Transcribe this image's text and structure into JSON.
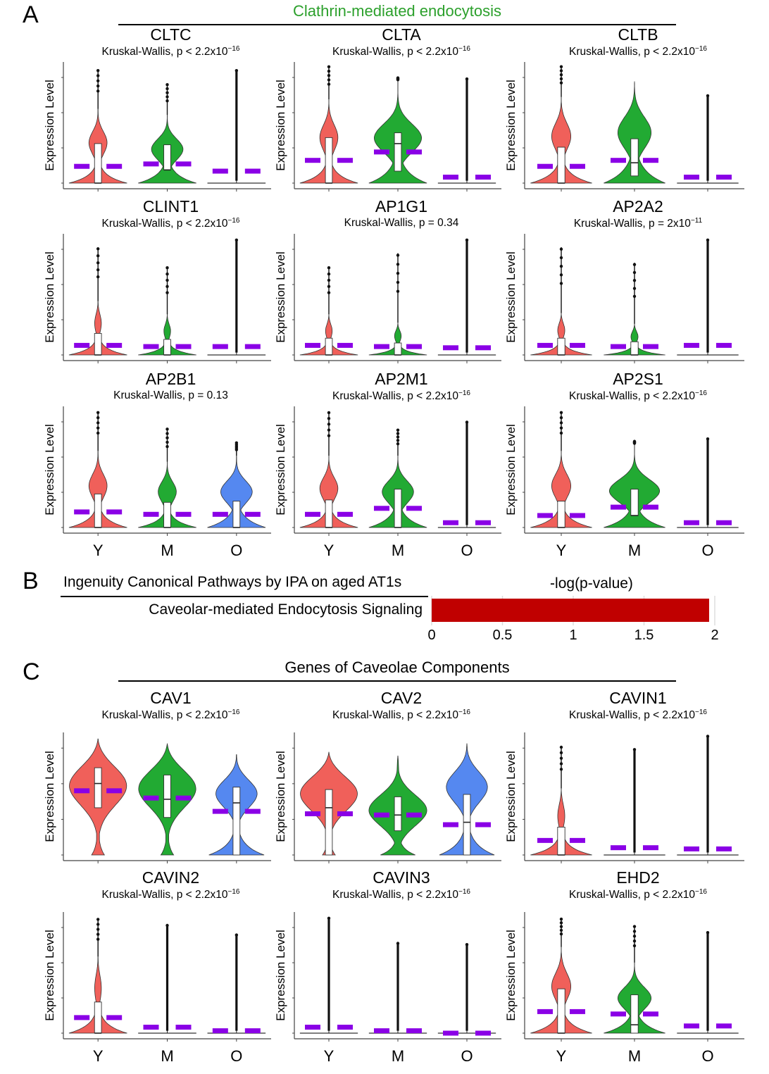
{
  "panels": {
    "A": {
      "letter": "A",
      "title": "Clathrin-mediated endocytosis",
      "title_color": "#2ca02c"
    },
    "B": {
      "letter": "B",
      "title": "Ingenuity Canonical Pathways by IPA on aged AT1s",
      "xlabel": "-log(p-value)",
      "row_label": "Caveolar-mediated Endocytosis Signaling",
      "ticks": [
        "0",
        "0.5",
        "1",
        "1.5",
        "2"
      ]
    },
    "C": {
      "letter": "C",
      "title": "Genes of Caveolae Components"
    }
  },
  "groups": [
    "Y",
    "M",
    "O"
  ],
  "ylabel": "Expression Level",
  "colors": {
    "Y": "#f0605a",
    "M": "#22aa33",
    "O": "#5588f0",
    "mean_bar": "#8a00e6",
    "ipa_bar": "#c00000"
  },
  "chart_data": [
    {
      "type": "bar",
      "title": "Ingenuity Canonical Pathways by IPA on aged AT1s",
      "xlabel": "-log(p-value)",
      "categories": [
        "Caveolar-mediated Endocytosis Signaling"
      ],
      "values": [
        1.96
      ],
      "xlim": [
        0,
        2
      ],
      "xticks": [
        0,
        0.5,
        1,
        1.5,
        2
      ],
      "orientation": "horizontal"
    },
    {
      "type": "violin",
      "panel": "A",
      "ylabel": "Expression Level",
      "categories": [
        "Y",
        "M",
        "O"
      ],
      "note": "values are relative positions on each plot's y-axis (0 = bottom, 1 = top); mean shown as purple bars",
      "plots": [
        {
          "gene": "CLTC",
          "stat": "Kruskal-Wallis, p < 2.2x10",
          "exp": "−16",
          "series": [
            {
              "group": "Y",
              "shape": "tall",
              "body_top": 0.62,
              "box": [
                0,
                0.33
              ],
              "median": 0,
              "mean": 0.14,
              "max": 0.95
            },
            {
              "group": "M",
              "shape": "mid",
              "body_top": 0.57,
              "box": [
                0.11,
                0.32
              ],
              "median": 0.11,
              "mean": 0.16,
              "max": 0.83
            },
            {
              "group": "O",
              "shape": "flat",
              "body_top": 0.0,
              "box": [
                0,
                0
              ],
              "median": 0,
              "mean": 0.1,
              "max": 0.94
            }
          ]
        },
        {
          "gene": "CLTA",
          "stat": "Kruskal-Wallis, p < 2.2x10",
          "exp": "−16",
          "series": [
            {
              "group": "Y",
              "shape": "tall",
              "body_top": 0.7,
              "box": [
                0,
                0.38
              ],
              "median": 0,
              "mean": 0.19,
              "max": 0.98
            },
            {
              "group": "M",
              "shape": "bulb",
              "body_top": 0.85,
              "box": [
                0.1,
                0.42
              ],
              "median": 0.33,
              "mean": 0.26,
              "max": 0.88
            },
            {
              "group": "O",
              "shape": "flat",
              "body_top": 0.0,
              "box": [
                0,
                0
              ],
              "median": 0,
              "mean": 0.05,
              "max": 0.87
            }
          ]
        },
        {
          "gene": "CLTB",
          "stat": "Kruskal-Wallis, p < 2.2x10",
          "exp": "−16",
          "series": [
            {
              "group": "Y",
              "shape": "tall",
              "body_top": 0.72,
              "box": [
                0,
                0.3
              ],
              "median": 0,
              "mean": 0.14,
              "max": 0.98
            },
            {
              "group": "M",
              "shape": "mid",
              "body_top": 0.85,
              "box": [
                0.06,
                0.37
              ],
              "median": 0.17,
              "mean": 0.19,
              "max": 0.84
            },
            {
              "group": "O",
              "shape": "flat",
              "body_top": 0.0,
              "box": [
                0,
                0
              ],
              "median": 0,
              "mean": 0.05,
              "max": 0.73
            }
          ]
        },
        {
          "gene": "CLINT1",
          "stat": "Kruskal-Wallis, p < 2.2x10",
          "exp": "−16",
          "series": [
            {
              "group": "Y",
              "shape": "thin",
              "body_top": 0.45,
              "box": [
                0,
                0.18
              ],
              "median": 0,
              "mean": 0.08,
              "max": 0.9
            },
            {
              "group": "M",
              "shape": "thin",
              "body_top": 0.34,
              "box": [
                0,
                0.13
              ],
              "median": 0,
              "mean": 0.07,
              "max": 0.74
            },
            {
              "group": "O",
              "shape": "flat",
              "body_top": 0.0,
              "box": [
                0,
                0
              ],
              "median": 0,
              "mean": 0.07,
              "max": 0.96
            }
          ]
        },
        {
          "gene": "AP1G1",
          "stat": "Kruskal-Wallis, p = 0.34",
          "exp": "",
          "series": [
            {
              "group": "Y",
              "shape": "thin",
              "body_top": 0.34,
              "box": [
                0,
                0.14
              ],
              "median": 0,
              "mean": 0.08,
              "max": 0.74
            },
            {
              "group": "M",
              "shape": "thin",
              "body_top": 0.27,
              "box": [
                0,
                0.1
              ],
              "median": 0,
              "mean": 0.07,
              "max": 0.85
            },
            {
              "group": "O",
              "shape": "flat",
              "body_top": 0.0,
              "box": [
                0,
                0
              ],
              "median": 0,
              "mean": 0.06,
              "max": 0.96
            }
          ]
        },
        {
          "gene": "AP2A2",
          "stat": "Kruskal-Wallis, p = 2x10",
          "exp": "−11",
          "series": [
            {
              "group": "Y",
              "shape": "thin",
              "body_top": 0.35,
              "box": [
                0,
                0.14
              ],
              "median": 0,
              "mean": 0.08,
              "max": 0.9
            },
            {
              "group": "M",
              "shape": "thin",
              "body_top": 0.26,
              "box": [
                0,
                0.11
              ],
              "median": 0,
              "mean": 0.07,
              "max": 0.77
            },
            {
              "group": "O",
              "shape": "flat",
              "body_top": 0.0,
              "box": [
                0,
                0
              ],
              "median": 0,
              "mean": 0.08,
              "max": 0.96
            }
          ]
        },
        {
          "gene": "AP2B1",
          "stat": "Kruskal-Wallis, p = 0.13",
          "exp": "",
          "series": [
            {
              "group": "Y",
              "shape": "tall",
              "body_top": 0.64,
              "box": [
                0,
                0.28
              ],
              "median": 0,
              "mean": 0.13,
              "max": 0.97
            },
            {
              "group": "M",
              "shape": "tall",
              "body_top": 0.55,
              "box": [
                0,
                0.21
              ],
              "median": 0,
              "mean": 0.11,
              "max": 0.83
            },
            {
              "group": "O",
              "shape": "mid",
              "body_top": 0.6,
              "box": [
                0,
                0.22
              ],
              "median": 0,
              "mean": 0.11,
              "max": 0.71
            }
          ]
        },
        {
          "gene": "AP2M1",
          "stat": "Kruskal-Wallis, p < 2.2x10",
          "exp": "−16",
          "series": [
            {
              "group": "Y",
              "shape": "tall",
              "body_top": 0.6,
              "box": [
                0,
                0.23
              ],
              "median": 0,
              "mean": 0.11,
              "max": 0.97
            },
            {
              "group": "M",
              "shape": "mid",
              "body_top": 0.6,
              "box": [
                0,
                0.32
              ],
              "median": 0,
              "mean": 0.16,
              "max": 0.82
            },
            {
              "group": "O",
              "shape": "flat",
              "body_top": 0.0,
              "box": [
                0,
                0
              ],
              "median": 0,
              "mean": 0.04,
              "max": 0.88
            }
          ]
        },
        {
          "gene": "AP2S1",
          "stat": "Kruskal-Wallis, p < 2.2x10",
          "exp": "−16",
          "series": [
            {
              "group": "Y",
              "shape": "tall",
              "body_top": 0.64,
              "box": [
                0,
                0.22
              ],
              "median": 0,
              "mean": 0.1,
              "max": 0.97
            },
            {
              "group": "M",
              "shape": "bulb",
              "body_top": 0.69,
              "box": [
                0.1,
                0.32
              ],
              "median": 0.1,
              "mean": 0.17,
              "max": 0.72
            },
            {
              "group": "O",
              "shape": "flat",
              "body_top": 0.0,
              "box": [
                0,
                0
              ],
              "median": 0,
              "mean": 0.04,
              "max": 0.74
            }
          ]
        }
      ]
    },
    {
      "type": "violin",
      "panel": "C",
      "ylabel": "Expression Level",
      "categories": [
        "Y",
        "M",
        "O"
      ],
      "note": "values are relative positions on each plot's y-axis (0 = bottom, 1 = top); mean shown as purple bars",
      "plots": [
        {
          "gene": "CAV1",
          "stat": "Kruskal-Wallis, p < 2.2x10",
          "exp": "−16",
          "series": [
            {
              "group": "Y",
              "shape": "full",
              "body_top": 0.96,
              "box": [
                0.39,
                0.72
              ],
              "median": 0.59,
              "mean": 0.53,
              "max": 0.96
            },
            {
              "group": "M",
              "shape": "full",
              "body_top": 0.92,
              "box": [
                0.31,
                0.66
              ],
              "median": 0.46,
              "mean": 0.47,
              "max": 0.92
            },
            {
              "group": "O",
              "shape": "top",
              "body_top": 0.83,
              "box": [
                0,
                0.56
              ],
              "median": 0.43,
              "mean": 0.36,
              "max": 0.83
            }
          ]
        },
        {
          "gene": "CAV2",
          "stat": "Kruskal-Wallis, p < 2.2x10",
          "exp": "−16",
          "series": [
            {
              "group": "Y",
              "shape": "full",
              "body_top": 0.85,
              "box": [
                0,
                0.54
              ],
              "median": 0.39,
              "mean": 0.34,
              "max": 0.85
            },
            {
              "group": "M",
              "shape": "full2",
              "body_top": 0.82,
              "box": [
                0.2,
                0.48
              ],
              "median": 0.33,
              "mean": 0.33,
              "max": 0.82
            },
            {
              "group": "O",
              "shape": "top",
              "body_top": 0.92,
              "box": [
                0,
                0.5
              ],
              "median": 0.27,
              "mean": 0.25,
              "max": 0.92
            }
          ]
        },
        {
          "gene": "CAVIN1",
          "stat": "Kruskal-Wallis, p < 2.2x10",
          "exp": "−16",
          "series": [
            {
              "group": "Y",
              "shape": "thin",
              "body_top": 0.55,
              "box": [
                0,
                0.23
              ],
              "median": 0,
              "mean": 0.12,
              "max": 0.9
            },
            {
              "group": "M",
              "shape": "flat",
              "body_top": 0.0,
              "box": [
                0,
                0
              ],
              "median": 0,
              "mean": 0.06,
              "max": 0.87
            },
            {
              "group": "O",
              "shape": "flat",
              "body_top": 0.0,
              "box": [
                0,
                0
              ],
              "median": 0,
              "mean": 0.05,
              "max": 0.98
            }
          ]
        },
        {
          "gene": "CAVIN2",
          "stat": "Kruskal-Wallis, p < 2.2x10",
          "exp": "−16",
          "series": [
            {
              "group": "Y",
              "shape": "thin",
              "body_top": 0.64,
              "box": [
                0,
                0.26
              ],
              "median": 0,
              "mean": 0.13,
              "max": 0.96
            },
            {
              "group": "M",
              "shape": "flat",
              "body_top": 0.0,
              "box": [
                0,
                0
              ],
              "median": 0,
              "mean": 0.05,
              "max": 0.9
            },
            {
              "group": "O",
              "shape": "flat",
              "body_top": 0.0,
              "box": [
                0,
                0
              ],
              "median": 0,
              "mean": 0.02,
              "max": 0.82
            }
          ]
        },
        {
          "gene": "CAVIN3",
          "stat": "Kruskal-Wallis, p < 2.2x10",
          "exp": "−16",
          "series": [
            {
              "group": "Y",
              "shape": "flat",
              "body_top": 0.0,
              "box": [
                0,
                0
              ],
              "median": 0,
              "mean": 0.05,
              "max": 0.96
            },
            {
              "group": "M",
              "shape": "flat",
              "body_top": 0.0,
              "box": [
                0,
                0
              ],
              "median": 0,
              "mean": 0.02,
              "max": 0.75
            },
            {
              "group": "O",
              "shape": "flat",
              "body_top": 0.0,
              "box": [
                0,
                0
              ],
              "median": 0,
              "mean": 0.0,
              "max": 0.74
            }
          ]
        },
        {
          "gene": "EHD2",
          "stat": "Kruskal-Wallis, p < 2.2x10",
          "exp": "−16",
          "series": [
            {
              "group": "Y",
              "shape": "tall",
              "body_top": 0.72,
              "box": [
                0,
                0.37
              ],
              "median": 0,
              "mean": 0.18,
              "max": 0.96
            },
            {
              "group": "M",
              "shape": "mid",
              "body_top": 0.59,
              "box": [
                0,
                0.32
              ],
              "median": 0.07,
              "mean": 0.16,
              "max": 0.9
            },
            {
              "group": "O",
              "shape": "flat",
              "body_top": 0.0,
              "box": [
                0,
                0
              ],
              "median": 0,
              "mean": 0.06,
              "max": 0.84
            }
          ]
        }
      ]
    }
  ]
}
